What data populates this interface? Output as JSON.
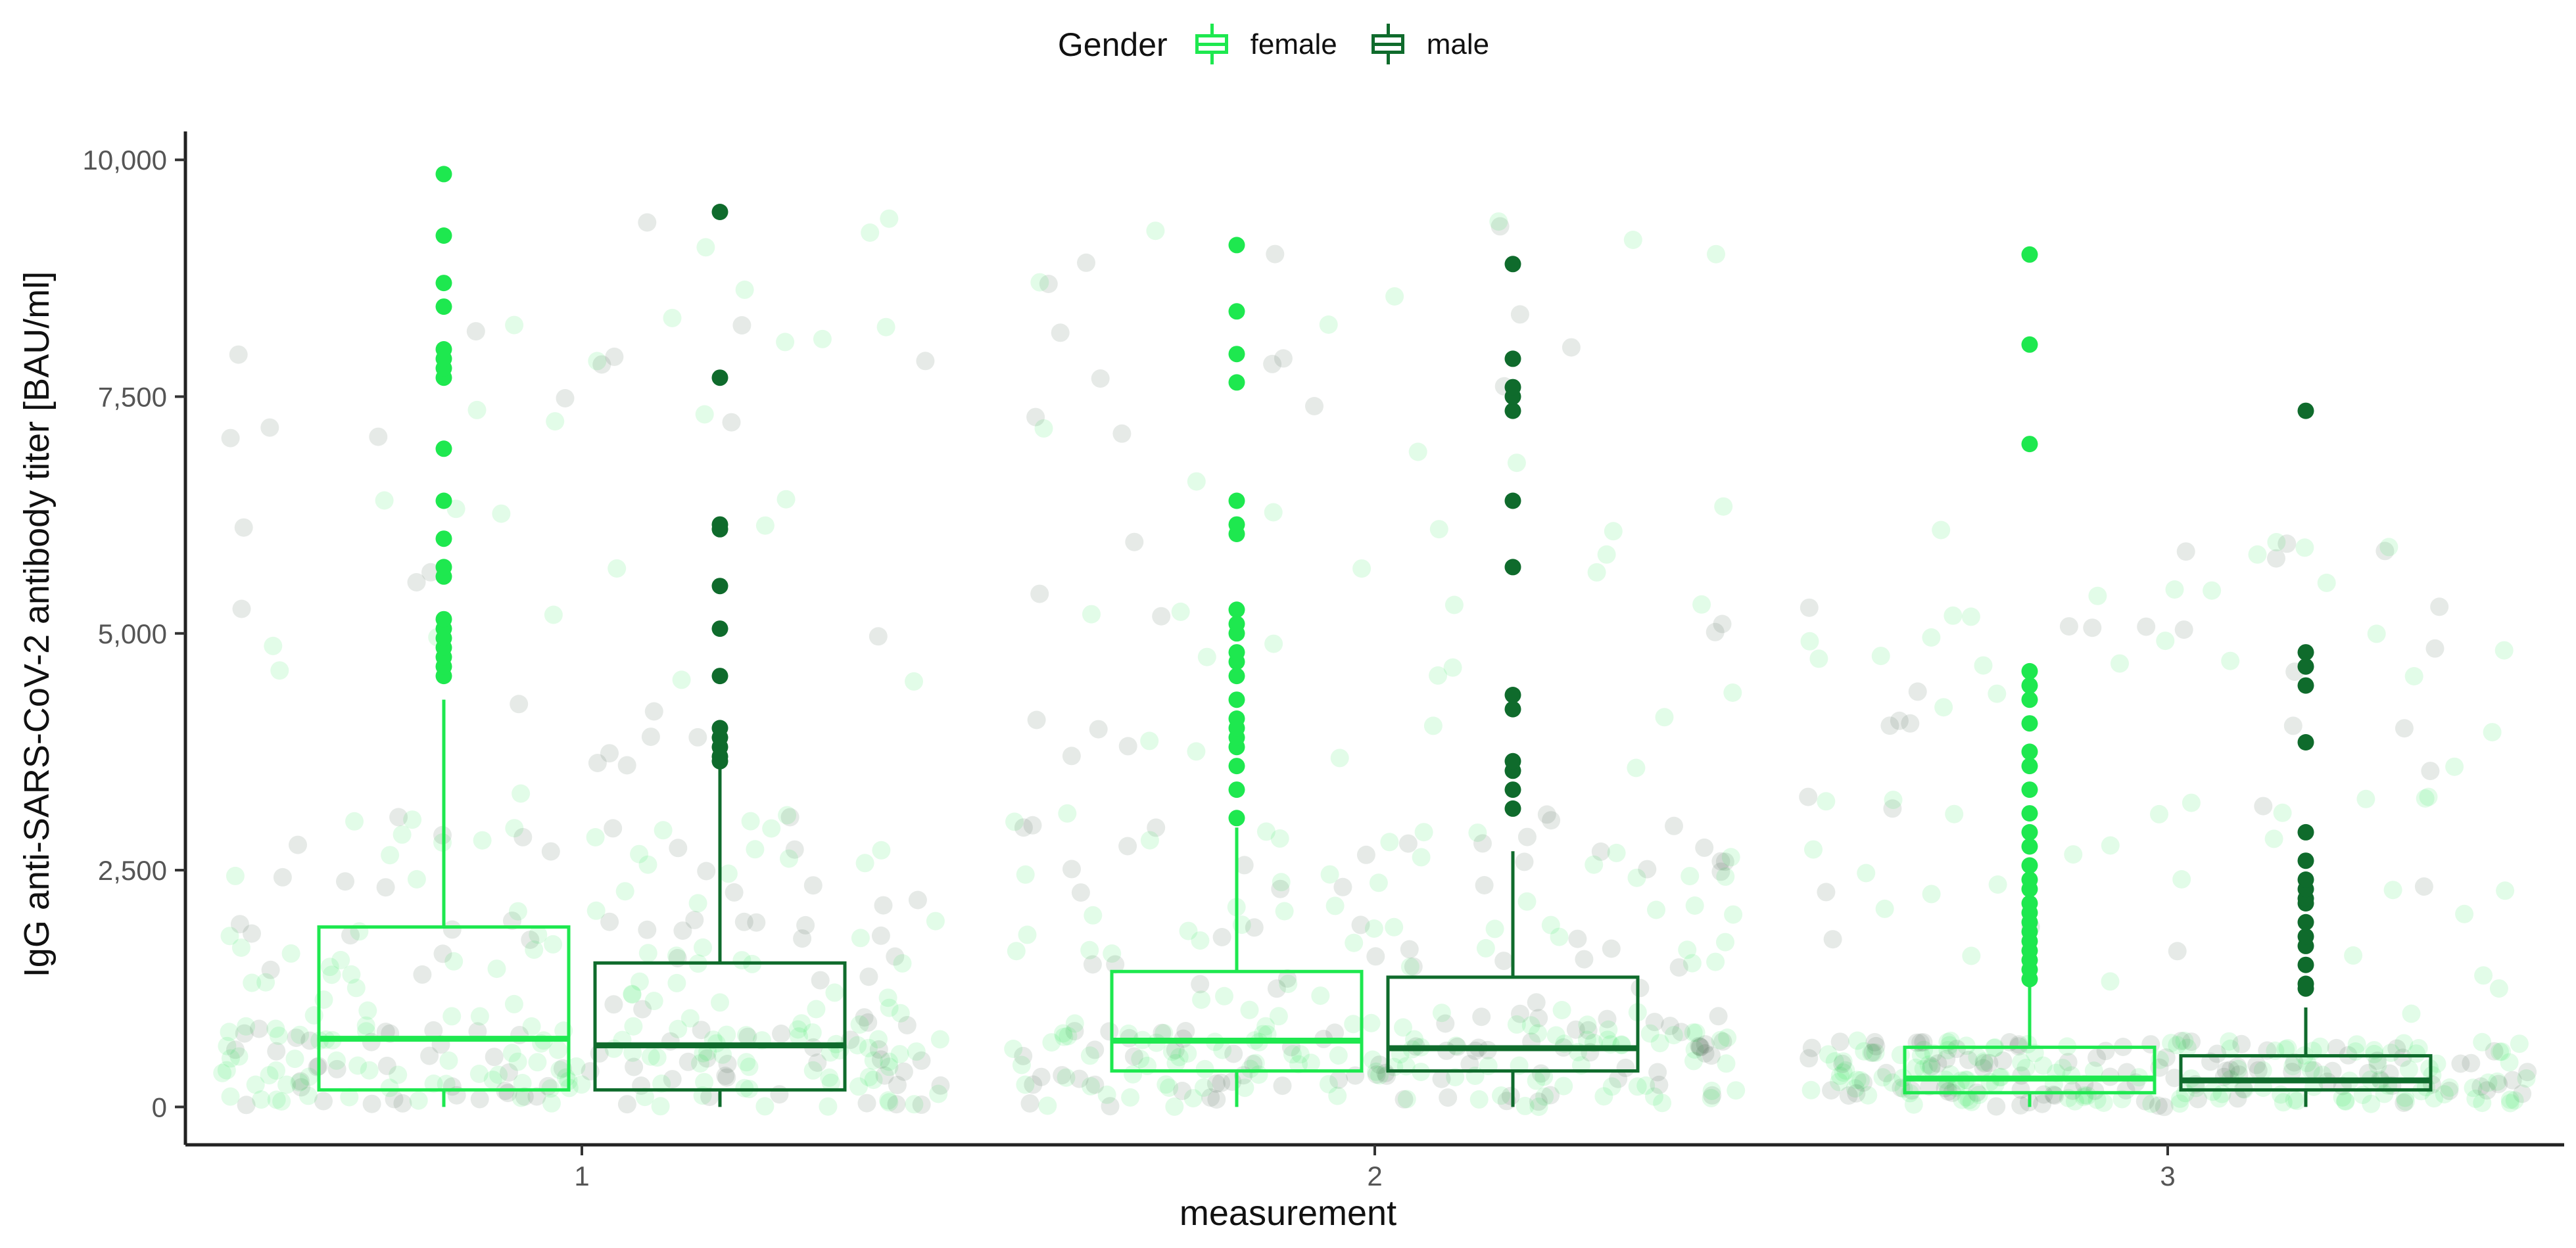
{
  "legend": {
    "title": "Gender",
    "items": [
      {
        "label": "female",
        "color": "#1ee84f"
      },
      {
        "label": "male",
        "color": "#0f6b2c"
      }
    ]
  },
  "chart_data": {
    "type": "boxplot",
    "xlabel": "measurement",
    "ylabel": "IgG anti-SARS-CoV-2 antibody titer [BAU/ml]",
    "categories": [
      "1",
      "2",
      "3"
    ],
    "ylim": [
      -400,
      10300
    ],
    "yticks": [
      0,
      2500,
      5000,
      7500,
      10000
    ],
    "ytick_labels": [
      "0",
      "2,500",
      "5,000",
      "7,500",
      "10,000"
    ],
    "grid": false,
    "legend_position": "top",
    "jitter_points": "semi-transparent individual observations jittered behind each box",
    "series": [
      {
        "name": "female",
        "color": "#1ee84f",
        "boxes": [
          {
            "category": "1",
            "whisker_low": 0,
            "q1": 180,
            "median": 720,
            "q3": 1900,
            "whisker_high": 4300,
            "outliers": [
              4550,
              4650,
              4750,
              4850,
              4950,
              5050,
              5150,
              5600,
              5700,
              6000,
              6400,
              6950,
              7700,
              7800,
              7900,
              8000,
              8450,
              8700,
              9200,
              9850
            ]
          },
          {
            "category": "2",
            "whisker_low": 0,
            "q1": 380,
            "median": 700,
            "q3": 1430,
            "whisker_high": 2950,
            "outliers": [
              3050,
              3350,
              3600,
              3800,
              3900,
              4000,
              4100,
              4300,
              4550,
              4700,
              4800,
              5000,
              5100,
              5250,
              6050,
              6150,
              6400,
              7650,
              7950,
              8400,
              9100
            ]
          },
          {
            "category": "3",
            "whisker_low": 0,
            "q1": 150,
            "median": 300,
            "q3": 630,
            "whisker_high": 1300,
            "outliers": [
              1350,
              1450,
              1550,
              1650,
              1750,
              1850,
              1950,
              2050,
              2150,
              2300,
              2400,
              2550,
              2750,
              2900,
              3100,
              3350,
              3600,
              3750,
              4050,
              4300,
              4450,
              4600,
              7000,
              8050,
              9000
            ]
          }
        ]
      },
      {
        "name": "male",
        "color": "#0f6b2c",
        "boxes": [
          {
            "category": "1",
            "whisker_low": 0,
            "q1": 180,
            "median": 650,
            "q3": 1520,
            "whisker_high": 3600,
            "outliers": [
              3650,
              3700,
              3800,
              3900,
              4000,
              4550,
              5050,
              5500,
              6100,
              6150,
              7700,
              9450
            ]
          },
          {
            "category": "2",
            "whisker_low": 0,
            "q1": 380,
            "median": 620,
            "q3": 1370,
            "whisker_high": 2700,
            "outliers": [
              3150,
              3350,
              3550,
              3650,
              4200,
              4350,
              5700,
              6400,
              7350,
              7500,
              7600,
              7900,
              8900
            ]
          },
          {
            "category": "3",
            "whisker_low": 0,
            "q1": 180,
            "median": 280,
            "q3": 540,
            "whisker_high": 1050,
            "outliers": [
              1250,
              1300,
              1500,
              1700,
              1800,
              1950,
              2150,
              2200,
              2300,
              2400,
              2600,
              2900,
              3850,
              4450,
              4650,
              4800,
              7350
            ]
          }
        ]
      }
    ]
  }
}
